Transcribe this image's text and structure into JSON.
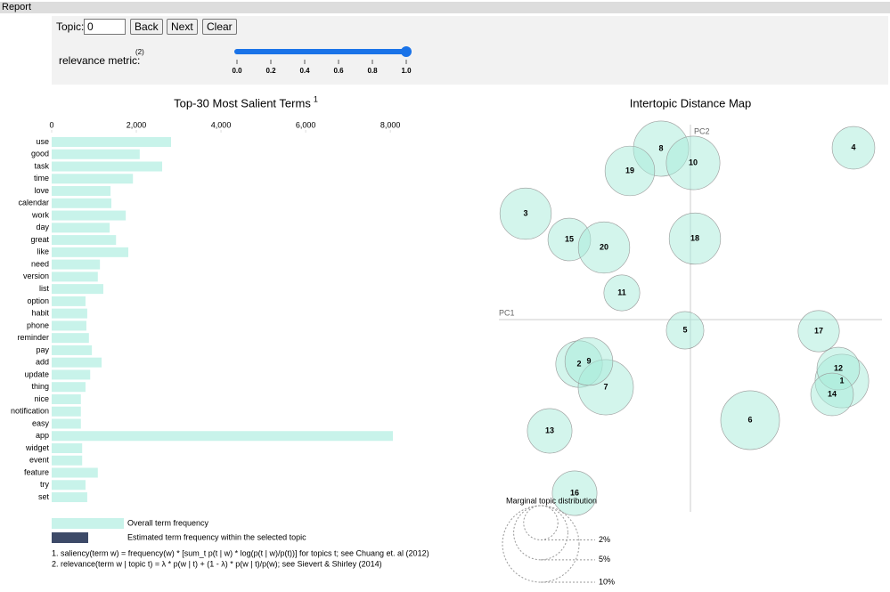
{
  "header": {
    "title": "Report"
  },
  "controls": {
    "topic_label": "Topic:",
    "topic_value": "0",
    "buttons": [
      "Back",
      "Next",
      "Clear"
    ],
    "slider": {
      "label": "relevance metric:",
      "footnote": "(2)",
      "range": [
        0,
        1
      ],
      "value": 1,
      "ticks": [
        {
          "value": 0,
          "label": "0.0"
        },
        {
          "value": 0.2,
          "label": "0.2"
        },
        {
          "value": 0.4,
          "label": "0.4"
        },
        {
          "value": 0.6,
          "label": "0.6"
        },
        {
          "value": 0.8,
          "label": "0.8"
        },
        {
          "value": 1,
          "label": "1.0"
        }
      ]
    }
  },
  "chart_data": [
    {
      "type": "bar",
      "orientation": "horizontal",
      "title": "Top-30 Most Salient Terms",
      "title_superscript": "1",
      "categories": [
        "use",
        "good",
        "task",
        "time",
        "love",
        "calendar",
        "work",
        "day",
        "great",
        "like",
        "need",
        "version",
        "list",
        "option",
        "habit",
        "phone",
        "reminder",
        "pay",
        "add",
        "update",
        "thing",
        "nice",
        "notification",
        "easy",
        "app",
        "widget",
        "event",
        "feature",
        "try",
        "set"
      ],
      "series": [
        {
          "name": "Overall term frequency",
          "color": "#c8f3ea",
          "values": [
            2820,
            2080,
            2610,
            1920,
            1390,
            1410,
            1750,
            1370,
            1520,
            1810,
            1140,
            1090,
            1220,
            800,
            840,
            820,
            880,
            950,
            1180,
            910,
            800,
            690,
            690,
            690,
            8060,
            720,
            720,
            1090,
            800,
            840
          ]
        },
        {
          "name": "Estimated term frequency within the selected topic",
          "color": "#3d4a68",
          "values": [
            null,
            null,
            null,
            null,
            null,
            null,
            null,
            null,
            null,
            null,
            null,
            null,
            null,
            null,
            null,
            null,
            null,
            null,
            null,
            null,
            null,
            null,
            null,
            null,
            null,
            null,
            null,
            null,
            null,
            null
          ]
        }
      ],
      "xlim": [
        0,
        8060
      ],
      "xticks": [
        0,
        {
          "value": 2000,
          "label": "2,000"
        },
        {
          "value": 4000,
          "label": "4,000"
        },
        {
          "value": 6000,
          "label": "6,000"
        },
        {
          "value": 8000,
          "label": "8,000"
        }
      ]
    },
    {
      "type": "scatter",
      "title": "Intertopic Distance Map",
      "xlabel": "PC1",
      "ylabel": "PC2",
      "color": "#a8ecd9",
      "labels": [
        "1",
        "2",
        "3",
        "4",
        "5",
        "6",
        "7",
        "8",
        "9",
        "10",
        "11",
        "12",
        "13",
        "14",
        "15",
        "16",
        "17",
        "18",
        "19",
        "20"
      ],
      "x": [
        0.17,
        -0.125,
        -0.185,
        0.183,
        -0.006,
        0.067,
        -0.095,
        -0.033,
        -0.114,
        0.003,
        -0.077,
        0.166,
        -0.158,
        0.159,
        -0.136,
        -0.13,
        0.144,
        0.005,
        -0.068,
        -0.097
      ],
      "values": [
        -0.069,
        -0.05,
        0.119,
        0.193,
        -0.012,
        -0.113,
        -0.076,
        0.192,
        -0.047,
        0.176,
        0.03,
        -0.055,
        -0.125,
        -0.084,
        0.09,
        -0.195,
        -0.013,
        0.091,
        0.167,
        0.081
      ],
      "sizes": [
        4.9,
        3.7,
        4.5,
        3.1,
        2.4,
        5.9,
        5.2,
        5.2,
        3.9,
        4.9,
        2.2,
        3.1,
        3.4,
        3.1,
        3.1,
        3.4,
        2.9,
        4.5,
        4.2,
        4.5
      ],
      "xlim": [
        -0.215,
        0.215
      ],
      "ylim": [
        -0.216,
        0.219
      ],
      "size_legend": {
        "title": "Marginal topic distribution",
        "values": [
          {
            "value": 2,
            "label": "2%"
          },
          {
            "value": 5,
            "label": "5%"
          },
          {
            "value": 10,
            "label": "10%"
          }
        ]
      }
    }
  ],
  "footnotes": [
    "1. saliency(term w) = frequency(w) * [sum_t p(t | w) * log(p(t | w)/p(t))] for topics t; see Chuang et. al (2012)",
    "2. relevance(term w | topic t) = λ * p(w | t) + (1 - λ) * p(w | t)/p(w); see Sievert & Shirley (2014)"
  ]
}
